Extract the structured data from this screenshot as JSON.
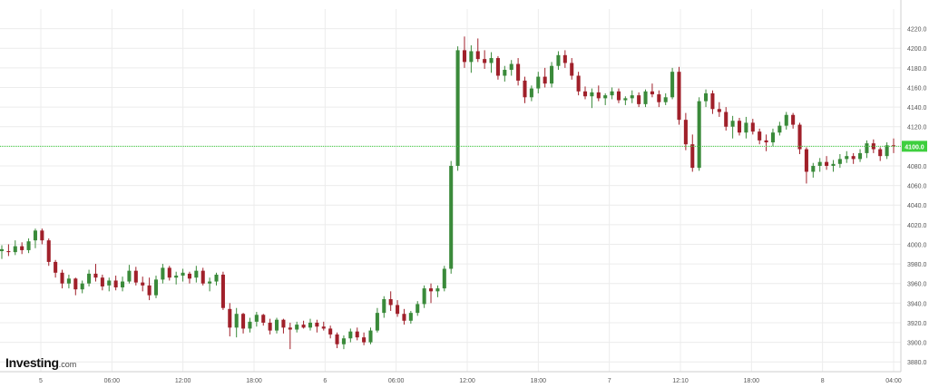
{
  "brand": {
    "main": "Investing",
    "sub": ".com"
  },
  "current_price_label": "4100.0",
  "colors": {
    "up": "#3a8a3a",
    "down": "#a0202a",
    "grid": "#ececec",
    "current": "#3ecf3e",
    "axis_text": "#555555"
  },
  "chart_data": {
    "type": "candlestick",
    "title": "",
    "xlabel": "",
    "ylabel": "",
    "ylim": [
      3870,
      4240
    ],
    "grid": true,
    "y_ticks": [
      3880.0,
      3900.0,
      3920.0,
      3940.0,
      3960.0,
      3980.0,
      4000.0,
      4020.0,
      4040.0,
      4060.0,
      4080.0,
      4100.0,
      4120.0,
      4140.0,
      4160.0,
      4180.0,
      4200.0,
      4220.0
    ],
    "x_ticks": [
      "5",
      "06:00",
      "12:00",
      "18:00",
      "6",
      "06:00",
      "12:00",
      "18:00",
      "7",
      "12:10",
      "18:00",
      "8",
      "04:00"
    ],
    "current_price": 4100.0,
    "series": [
      {
        "values": [
          [
            3993,
            3999,
            3985,
            3995
          ],
          [
            3993,
            4000,
            3988,
            3992
          ],
          [
            3992,
            4004,
            3989,
            3998
          ],
          [
            3998,
            4002,
            3990,
            3994
          ],
          [
            3994,
            4006,
            3991,
            4003
          ],
          [
            4004,
            4016,
            3996,
            4014
          ],
          [
            4014,
            4016,
            4000,
            4004
          ],
          [
            4004,
            4006,
            3978,
            3982
          ],
          [
            3982,
            3984,
            3966,
            3971
          ],
          [
            3971,
            3974,
            3955,
            3960
          ],
          [
            3960,
            3969,
            3955,
            3965
          ],
          [
            3965,
            3966,
            3948,
            3954
          ],
          [
            3954,
            3963,
            3950,
            3960
          ],
          [
            3960,
            3974,
            3957,
            3970
          ],
          [
            3970,
            3980,
            3962,
            3966
          ],
          [
            3966,
            3969,
            3953,
            3957
          ],
          [
            3958,
            3966,
            3952,
            3963
          ],
          [
            3963,
            3968,
            3953,
            3956
          ],
          [
            3956,
            3967,
            3952,
            3962
          ],
          [
            3962,
            3979,
            3960,
            3973
          ],
          [
            3973,
            3977,
            3958,
            3961
          ],
          [
            3961,
            3967,
            3952,
            3958
          ],
          [
            3958,
            3966,
            3943,
            3948
          ],
          [
            3948,
            3968,
            3945,
            3964
          ],
          [
            3964,
            3980,
            3960,
            3976
          ],
          [
            3976,
            3978,
            3963,
            3966
          ],
          [
            3966,
            3972,
            3959,
            3968
          ],
          [
            3968,
            3975,
            3962,
            3971
          ],
          [
            3970,
            3972,
            3960,
            3965
          ],
          [
            3966,
            3978,
            3961,
            3973
          ],
          [
            3973,
            3976,
            3958,
            3960
          ],
          [
            3960,
            3966,
            3952,
            3962
          ],
          [
            3962,
            3971,
            3958,
            3969
          ],
          [
            3969,
            3972,
            3933,
            3935
          ],
          [
            3934,
            3940,
            3906,
            3915
          ],
          [
            3915,
            3935,
            3905,
            3929
          ],
          [
            3929,
            3930,
            3909,
            3914
          ],
          [
            3914,
            3925,
            3910,
            3921
          ],
          [
            3921,
            3931,
            3916,
            3928
          ],
          [
            3928,
            3929,
            3917,
            3920
          ],
          [
            3920,
            3924,
            3908,
            3912
          ],
          [
            3912,
            3925,
            3909,
            3923
          ],
          [
            3923,
            3924,
            3909,
            3915
          ],
          [
            3915,
            3920,
            3893,
            3913
          ],
          [
            3913,
            3921,
            3910,
            3918
          ],
          [
            3918,
            3922,
            3914,
            3915
          ],
          [
            3915,
            3924,
            3912,
            3920
          ],
          [
            3920,
            3923,
            3910,
            3916
          ],
          [
            3916,
            3921,
            3912,
            3914
          ],
          [
            3914,
            3917,
            3904,
            3908
          ],
          [
            3908,
            3910,
            3894,
            3898
          ],
          [
            3898,
            3907,
            3893,
            3904
          ],
          [
            3904,
            3914,
            3900,
            3911
          ],
          [
            3911,
            3915,
            3902,
            3905
          ],
          [
            3905,
            3910,
            3897,
            3900
          ],
          [
            3900,
            3915,
            3898,
            3912
          ],
          [
            3912,
            3935,
            3910,
            3930
          ],
          [
            3930,
            3947,
            3925,
            3944
          ],
          [
            3944,
            3952,
            3932,
            3938
          ],
          [
            3938,
            3943,
            3926,
            3929
          ],
          [
            3929,
            3934,
            3918,
            3922
          ],
          [
            3922,
            3932,
            3919,
            3930
          ],
          [
            3930,
            3942,
            3927,
            3939
          ],
          [
            3939,
            3958,
            3935,
            3955
          ],
          [
            3955,
            3960,
            3940,
            3952
          ],
          [
            3952,
            3958,
            3946,
            3955
          ],
          [
            3955,
            3978,
            3952,
            3975
          ],
          [
            3975,
            4085,
            3970,
            4080
          ],
          [
            4080,
            4202,
            4075,
            4198
          ],
          [
            4198,
            4212,
            4180,
            4186
          ],
          [
            4186,
            4203,
            4175,
            4197
          ],
          [
            4197,
            4210,
            4186,
            4189
          ],
          [
            4189,
            4198,
            4179,
            4185
          ],
          [
            4185,
            4196,
            4175,
            4190
          ],
          [
            4190,
            4192,
            4168,
            4172
          ],
          [
            4172,
            4182,
            4166,
            4178
          ],
          [
            4178,
            4188,
            4172,
            4184
          ],
          [
            4184,
            4190,
            4162,
            4167
          ],
          [
            4167,
            4171,
            4144,
            4150
          ],
          [
            4150,
            4162,
            4146,
            4159
          ],
          [
            4159,
            4176,
            4154,
            4171
          ],
          [
            4171,
            4180,
            4160,
            4164
          ],
          [
            4164,
            4186,
            4160,
            4182
          ],
          [
            4182,
            4197,
            4178,
            4193
          ],
          [
            4193,
            4198,
            4180,
            4185
          ],
          [
            4185,
            4190,
            4168,
            4172
          ],
          [
            4172,
            4176,
            4152,
            4156
          ],
          [
            4156,
            4161,
            4148,
            4151
          ],
          [
            4151,
            4159,
            4139,
            4155
          ],
          [
            4155,
            4162,
            4146,
            4149
          ],
          [
            4149,
            4154,
            4142,
            4152
          ],
          [
            4152,
            4160,
            4148,
            4156
          ],
          [
            4156,
            4159,
            4144,
            4147
          ],
          [
            4147,
            4151,
            4142,
            4149
          ],
          [
            4149,
            4157,
            4144,
            4152
          ],
          [
            4152,
            4155,
            4140,
            4143
          ],
          [
            4143,
            4158,
            4140,
            4156
          ],
          [
            4156,
            4164,
            4150,
            4153
          ],
          [
            4153,
            4157,
            4140,
            4145
          ],
          [
            4145,
            4154,
            4142,
            4150
          ],
          [
            4150,
            4180,
            4148,
            4176
          ],
          [
            4176,
            4181,
            4122,
            4127
          ],
          [
            4127,
            4134,
            4096,
            4102
          ],
          [
            4102,
            4112,
            4074,
            4078
          ],
          [
            4078,
            4150,
            4075,
            4146
          ],
          [
            4146,
            4158,
            4140,
            4154
          ],
          [
            4154,
            4157,
            4133,
            4138
          ],
          [
            4138,
            4145,
            4130,
            4135
          ],
          [
            4135,
            4140,
            4116,
            4120
          ],
          [
            4120,
            4131,
            4108,
            4126
          ],
          [
            4126,
            4129,
            4111,
            4114
          ],
          [
            4114,
            4130,
            4108,
            4124
          ],
          [
            4124,
            4128,
            4112,
            4115
          ],
          [
            4115,
            4118,
            4102,
            4106
          ],
          [
            4106,
            4112,
            4095,
            4104
          ],
          [
            4104,
            4118,
            4100,
            4114
          ],
          [
            4114,
            4125,
            4111,
            4121
          ],
          [
            4121,
            4135,
            4117,
            4132
          ],
          [
            4132,
            4134,
            4118,
            4122
          ],
          [
            4122,
            4124,
            4092,
            4097
          ],
          [
            4097,
            4099,
            4062,
            4074
          ],
          [
            4074,
            4083,
            4068,
            4080
          ],
          [
            4080,
            4088,
            4074,
            4084
          ],
          [
            4084,
            4090,
            4076,
            4080
          ],
          [
            4080,
            4086,
            4074,
            4082
          ],
          [
            4082,
            4092,
            4078,
            4087
          ],
          [
            4087,
            4095,
            4083,
            4090
          ],
          [
            4090,
            4093,
            4082,
            4087
          ],
          [
            4087,
            4097,
            4084,
            4093
          ],
          [
            4093,
            4106,
            4088,
            4103
          ],
          [
            4103,
            4107,
            4093,
            4097
          ],
          [
            4097,
            4099,
            4085,
            4090
          ],
          [
            4090,
            4104,
            4087,
            4101
          ],
          [
            4101,
            4108,
            4093,
            4100
          ]
        ]
      }
    ]
  }
}
